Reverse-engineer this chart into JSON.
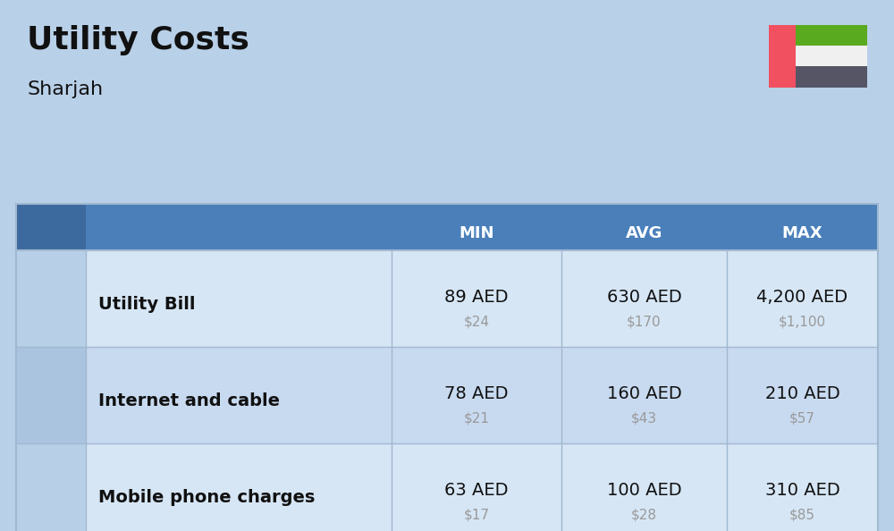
{
  "title": "Utility Costs",
  "subtitle": "Sharjah",
  "bg_color": "#b8d0e8",
  "table_header_color": "#4a7fba",
  "table_header_text_color": "#ffffff",
  "row_color_1": "#d6e6f5",
  "row_color_2": "#c8daf0",
  "icon_bg_1": "#b8cfe8",
  "icon_bg_2": "#aac4e0",
  "text_color": "#111111",
  "usd_color": "#999999",
  "col_headers": [
    "MIN",
    "AVG",
    "MAX"
  ],
  "rows": [
    {
      "label": "Utility Bill",
      "aed": [
        "89 AED",
        "630 AED",
        "4,200 AED"
      ],
      "usd": [
        "$24",
        "$170",
        "$1,100"
      ]
    },
    {
      "label": "Internet and cable",
      "aed": [
        "78 AED",
        "160 AED",
        "210 AED"
      ],
      "usd": [
        "$21",
        "$43",
        "$57"
      ]
    },
    {
      "label": "Mobile phone charges",
      "aed": [
        "63 AED",
        "100 AED",
        "310 AED"
      ],
      "usd": [
        "$17",
        "$28",
        "$85"
      ]
    }
  ],
  "flag": {
    "red": "#f05060",
    "green": "#5aaa20",
    "white": "#f0f0f0",
    "dark": "#555566"
  },
  "fig_width": 10.0,
  "fig_height": 5.94,
  "dpi": 100
}
